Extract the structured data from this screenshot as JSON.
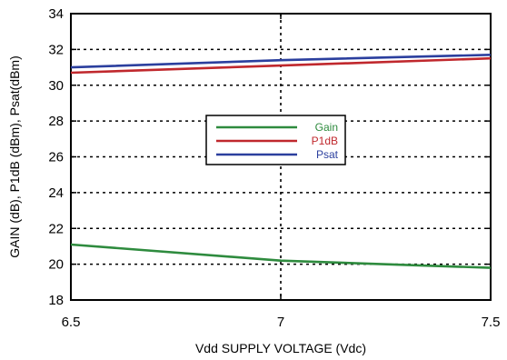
{
  "chart_data": {
    "type": "line",
    "title": "",
    "xlabel": "Vdd SUPPLY VOLTAGE (Vdc)",
    "ylabel": "GAIN (dB), P1dB (dBm), Psat(dBm)",
    "xlim": [
      6.5,
      7.5
    ],
    "ylim": [
      18,
      34
    ],
    "x_ticks": [
      6.5,
      7,
      7.5
    ],
    "x_tick_labels": [
      "6.5",
      "7",
      "7.5"
    ],
    "y_ticks": [
      18,
      20,
      22,
      24,
      26,
      28,
      30,
      32,
      34
    ],
    "y_tick_labels": [
      "18",
      "20",
      "22",
      "24",
      "26",
      "28",
      "30",
      "32",
      "34"
    ],
    "grid": true,
    "legend_position": "center",
    "x": [
      6.5,
      7.0,
      7.5
    ],
    "series": [
      {
        "name": "Gain",
        "color": "#2e8b3e",
        "values": [
          21.1,
          20.2,
          19.8
        ]
      },
      {
        "name": "P1dB",
        "color": "#c0282d",
        "values": [
          30.7,
          31.1,
          31.5
        ]
      },
      {
        "name": "Psat",
        "color": "#2b3f9e",
        "values": [
          31.0,
          31.4,
          31.7
        ]
      }
    ]
  }
}
